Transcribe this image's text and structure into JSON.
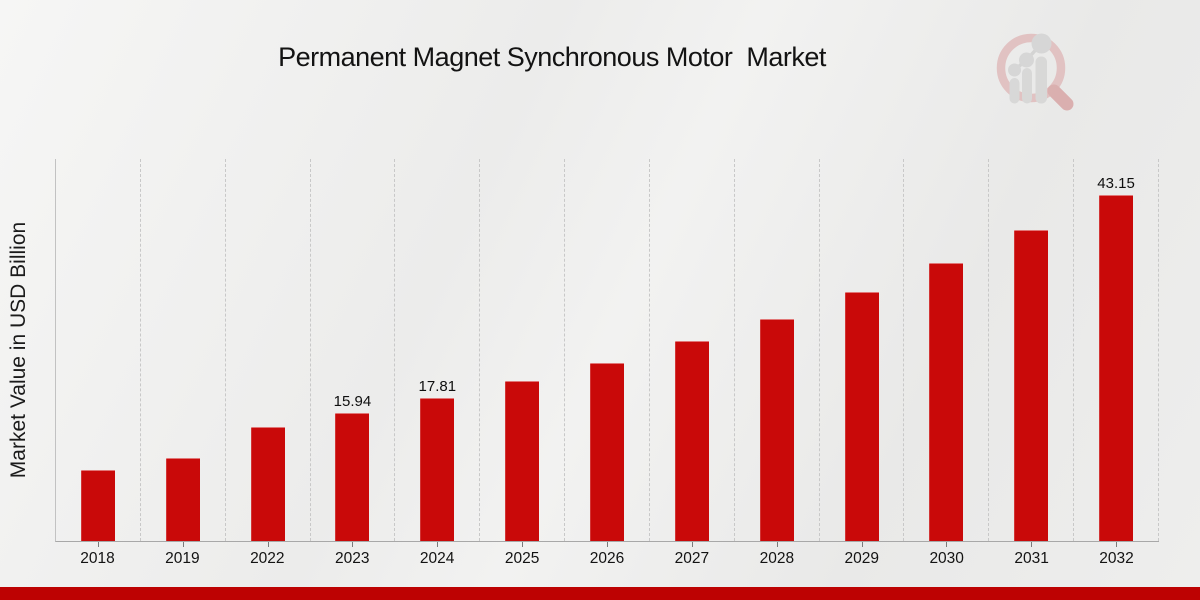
{
  "chart_data": {
    "type": "bar",
    "title": "Permanent Magnet Synchronous Motor  Market",
    "xlabel": "",
    "ylabel": "Market Value in USD Billion",
    "categories": [
      "2018",
      "2019",
      "2022",
      "2023",
      "2024",
      "2025",
      "2026",
      "2027",
      "2028",
      "2029",
      "2030",
      "2031",
      "2032"
    ],
    "values": [
      8.8,
      10.3,
      14.25,
      15.94,
      17.81,
      19.9,
      22.2,
      24.9,
      27.7,
      31.0,
      34.6,
      38.7,
      43.15
    ],
    "data_labels": {
      "2023": "15.94",
      "2024": "17.81",
      "2032": "43.15"
    },
    "ylim": [
      0,
      47.6
    ],
    "grid": "vertical-dashed",
    "legend_position": "none",
    "bar_color": "#c90909"
  },
  "branding": {
    "logo_icon": "magnifier-bar-chart-logo",
    "accent_color": "#bd0202",
    "logo_ring_color": "#e0bcbc",
    "logo_handle_color": "#d8a6a6",
    "logo_bars_color": "#d5d5d5"
  }
}
